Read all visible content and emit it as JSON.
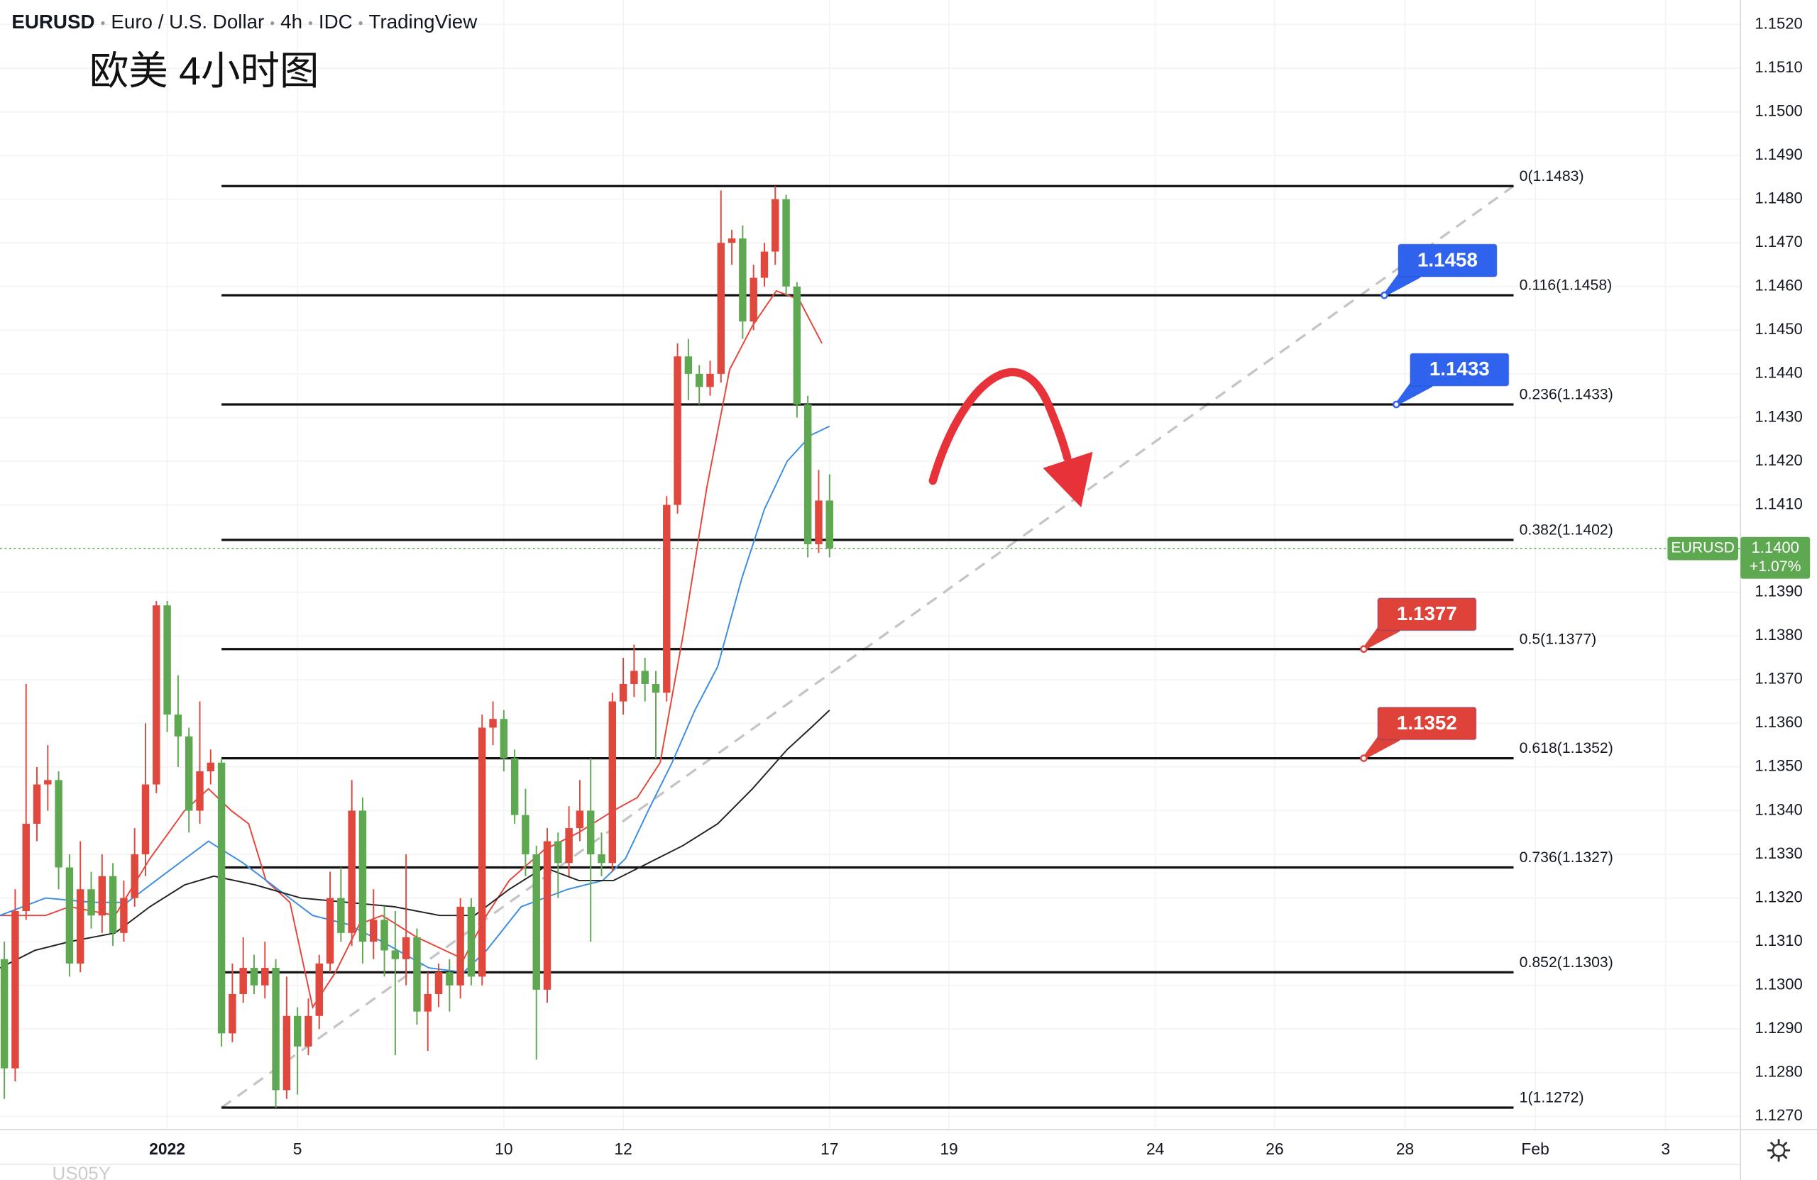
{
  "chart_data": {
    "type": "candlestick",
    "header": [
      "EURUSD",
      "Euro / U.S. Dollar",
      "4h",
      "IDC",
      "TradingView"
    ],
    "title": "欧美 4小时图",
    "footer_symbol": "US05Y",
    "up_color": "#e0473d",
    "down_color": "#5da850",
    "open": [
      1.1306,
      1.1281,
      1.1317,
      1.1337,
      1.1346,
      1.1347,
      1.1327,
      1.1305,
      1.1322,
      1.1316,
      1.1325,
      1.1312,
      1.132,
      1.133,
      1.1346,
      1.1387,
      1.1362,
      1.1357,
      1.134,
      1.1349,
      1.1351,
      1.1289,
      1.1298,
      1.1304,
      1.13,
      1.1304,
      1.1276,
      1.1293,
      1.1286,
      1.1293,
      1.1305,
      1.132,
      1.1312,
      1.134,
      1.131,
      1.1315,
      1.1308,
      1.1306,
      1.1311,
      1.1294,
      1.1298,
      1.1303,
      1.13,
      1.1318,
      1.1302,
      1.1359,
      1.1361,
      1.1352,
      1.1339,
      1.133,
      1.1299,
      1.1333,
      1.1328,
      1.1336,
      1.134,
      1.133,
      1.1328,
      1.1365,
      1.1369,
      1.1372,
      1.1369,
      1.1367,
      1.141,
      1.1444,
      1.144,
      1.1437,
      1.144,
      1.147,
      1.1471,
      1.1452,
      1.1462,
      1.1468,
      1.148,
      1.146,
      1.1433,
      1.1401,
      1.1411
    ],
    "high": [
      1.131,
      1.1322,
      1.1369,
      1.135,
      1.1355,
      1.1349,
      1.133,
      1.1333,
      1.1326,
      1.133,
      1.1328,
      1.1324,
      1.1336,
      1.136,
      1.1388,
      1.1388,
      1.1371,
      1.1359,
      1.1365,
      1.1354,
      1.1352,
      1.1305,
      1.1311,
      1.1307,
      1.131,
      1.1306,
      1.1302,
      1.1295,
      1.1297,
      1.1307,
      1.1326,
      1.1327,
      1.1347,
      1.1343,
      1.1322,
      1.1318,
      1.1317,
      1.133,
      1.1313,
      1.1303,
      1.1305,
      1.1306,
      1.132,
      1.132,
      1.1362,
      1.1365,
      1.1363,
      1.1354,
      1.1345,
      1.1332,
      1.1336,
      1.1335,
      1.1341,
      1.1347,
      1.1352,
      1.1335,
      1.1367,
      1.1375,
      1.1378,
      1.1375,
      1.1372,
      1.1412,
      1.1447,
      1.1448,
      1.1442,
      1.1443,
      1.1482,
      1.1473,
      1.1474,
      1.1465,
      1.147,
      1.1483,
      1.1481,
      1.1461,
      1.1435,
      1.1418,
      1.1417
    ],
    "low": [
      1.1274,
      1.1278,
      1.1315,
      1.1333,
      1.134,
      1.1322,
      1.1302,
      1.1303,
      1.1313,
      1.1312,
      1.1309,
      1.131,
      1.1318,
      1.1325,
      1.1344,
      1.1358,
      1.135,
      1.1335,
      1.1337,
      1.1346,
      1.1286,
      1.1287,
      1.1296,
      1.1298,
      1.1297,
      1.1272,
      1.1274,
      1.1275,
      1.1284,
      1.129,
      1.1303,
      1.131,
      1.1309,
      1.1305,
      1.1306,
      1.1302,
      1.1284,
      1.13,
      1.1291,
      1.1285,
      1.1295,
      1.1294,
      1.1297,
      1.13,
      1.13,
      1.1355,
      1.1349,
      1.1337,
      1.1325,
      1.1283,
      1.1296,
      1.132,
      1.1325,
      1.1333,
      1.131,
      1.1325,
      1.1326,
      1.1362,
      1.1366,
      1.1365,
      1.1352,
      1.1365,
      1.1408,
      1.1434,
      1.1433,
      1.1435,
      1.1438,
      1.1465,
      1.1448,
      1.145,
      1.146,
      1.1465,
      1.1458,
      1.143,
      1.1398,
      1.1399,
      1.1398
    ],
    "close": [
      1.1281,
      1.1317,
      1.1337,
      1.1346,
      1.1347,
      1.1327,
      1.1305,
      1.1322,
      1.1316,
      1.1325,
      1.1312,
      1.132,
      1.133,
      1.1346,
      1.1387,
      1.1362,
      1.1357,
      1.134,
      1.1349,
      1.1351,
      1.1289,
      1.1298,
      1.1304,
      1.13,
      1.1304,
      1.1276,
      1.1293,
      1.1286,
      1.1293,
      1.1305,
      1.132,
      1.1312,
      1.134,
      1.131,
      1.1315,
      1.1308,
      1.1306,
      1.1311,
      1.1294,
      1.1298,
      1.1303,
      1.13,
      1.1318,
      1.1302,
      1.1359,
      1.1361,
      1.1352,
      1.1339,
      1.133,
      1.1299,
      1.1333,
      1.1328,
      1.1336,
      1.134,
      1.133,
      1.1328,
      1.1365,
      1.1369,
      1.1372,
      1.1369,
      1.1367,
      1.141,
      1.1444,
      1.144,
      1.1437,
      1.144,
      1.147,
      1.1471,
      1.1452,
      1.1462,
      1.1468,
      1.148,
      1.146,
      1.1433,
      1.1401,
      1.1411,
      1.14
    ],
    "lines": [
      {
        "color": "#e5453b",
        "x": [
          -0.4,
          3.8,
          6.0,
          10.2,
          13.4,
          16.6,
          18.8,
          20.9,
          22.5,
          24.1,
          26.3,
          28.4,
          30.5,
          32.7,
          34.8,
          38.0,
          42.3,
          44.4,
          46.5,
          49.7,
          52.9,
          56.1,
          58.3,
          60.4,
          62.5,
          64.7,
          66.8,
          68.9,
          71.1,
          73.2,
          75.3
        ],
        "values": [
          1.1316,
          1.1316,
          1.1318,
          1.1316,
          1.1329,
          1.134,
          1.1345,
          1.134,
          1.1337,
          1.1324,
          1.1319,
          1.1295,
          1.1303,
          1.1314,
          1.1316,
          1.1311,
          1.1306,
          1.1316,
          1.1324,
          1.1331,
          1.1335,
          1.134,
          1.1343,
          1.1351,
          1.138,
          1.1414,
          1.1441,
          1.1451,
          1.1459,
          1.1457,
          1.1447
        ]
      },
      {
        "color": "#3b8de0",
        "x": [
          -0.4,
          3.8,
          8.1,
          11.3,
          14.5,
          18.8,
          22.0,
          25.2,
          28.4,
          31.6,
          34.8,
          39.1,
          42.3,
          44.4,
          47.6,
          51.9,
          55.1,
          57.2,
          59.3,
          61.5,
          63.6,
          65.7,
          67.9,
          70.0,
          72.1,
          74.3,
          76.0
        ],
        "values": [
          1.1316,
          1.132,
          1.1319,
          1.1319,
          1.1325,
          1.1333,
          1.1328,
          1.1322,
          1.1316,
          1.1314,
          1.131,
          1.1304,
          1.1303,
          1.1308,
          1.1318,
          1.1322,
          1.1324,
          1.1329,
          1.134,
          1.1351,
          1.1363,
          1.1373,
          1.1393,
          1.1409,
          1.142,
          1.1426,
          1.1428
        ]
      },
      {
        "color": "#222222",
        "x": [
          -0.4,
          2.8,
          6.0,
          10.2,
          13.4,
          16.6,
          19.3,
          23.1,
          27.3,
          31.6,
          35.9,
          40.1,
          43.3,
          46.5,
          49.7,
          52.9,
          56.1,
          59.3,
          62.5,
          65.7,
          68.9,
          72.1,
          74.3,
          76.0
        ],
        "values": [
          1.1304,
          1.1308,
          1.131,
          1.1312,
          1.1318,
          1.1323,
          1.1325,
          1.1323,
          1.132,
          1.1319,
          1.1318,
          1.1316,
          1.1316,
          1.1322,
          1.1327,
          1.1324,
          1.1324,
          1.1328,
          1.1332,
          1.1337,
          1.1345,
          1.1354,
          1.1359,
          1.1363
        ]
      }
    ],
    "xlim": [
      -0.4,
      159.9
    ],
    "xticks": [
      {
        "value": 15,
        "label": "2022"
      },
      {
        "value": 27,
        "label": "5"
      },
      {
        "value": 46,
        "label": "10"
      },
      {
        "value": 57,
        "label": "12"
      },
      {
        "value": 76,
        "label": "17"
      },
      {
        "value": 87,
        "label": "19"
      },
      {
        "value": 106,
        "label": "24"
      },
      {
        "value": 117,
        "label": "26"
      },
      {
        "value": 129,
        "label": "28"
      },
      {
        "value": 141,
        "label": "Feb"
      },
      {
        "value": 153,
        "label": "3"
      }
    ],
    "ylim": [
      1.1267,
      1.15256
    ],
    "yticks": [
      {
        "value": 1.127,
        "label": "1.1270"
      },
      {
        "value": 1.128,
        "label": "1.1280"
      },
      {
        "value": 1.129,
        "label": "1.1290"
      },
      {
        "value": 1.13,
        "label": "1.1300"
      },
      {
        "value": 1.131,
        "label": "1.1310"
      },
      {
        "value": 1.132,
        "label": "1.1320"
      },
      {
        "value": 1.133,
        "label": "1.1330"
      },
      {
        "value": 1.134,
        "label": "1.1340"
      },
      {
        "value": 1.135,
        "label": "1.1350"
      },
      {
        "value": 1.136,
        "label": "1.1360"
      },
      {
        "value": 1.137,
        "label": "1.1370"
      },
      {
        "value": 1.138,
        "label": "1.1380"
      },
      {
        "value": 1.139,
        "label": "1.1390"
      },
      {
        "value": 1.14,
        "label": "1.1400"
      },
      {
        "value": 1.141,
        "label": "1.1410"
      },
      {
        "value": 1.142,
        "label": "1.1420"
      },
      {
        "value": 1.143,
        "label": "1.1430"
      },
      {
        "value": 1.144,
        "label": "1.1440"
      },
      {
        "value": 1.145,
        "label": "1.1450"
      },
      {
        "value": 1.146,
        "label": "1.1460"
      },
      {
        "value": 1.147,
        "label": "1.1470"
      },
      {
        "value": 1.148,
        "label": "1.1480"
      },
      {
        "value": 1.149,
        "label": "1.1490"
      },
      {
        "value": 1.15,
        "label": "1.1500"
      },
      {
        "value": 1.151,
        "label": "1.1510"
      },
      {
        "value": 1.152,
        "label": "1.1520"
      }
    ],
    "grid": true,
    "fib": {
      "x": [
        20,
        139
      ],
      "levels": [
        {
          "value": 1.1483,
          "label": "0(1.1483)"
        },
        {
          "value": 1.1458,
          "label": "0.116(1.1458)"
        },
        {
          "value": 1.1433,
          "label": "0.236(1.1433)"
        },
        {
          "value": 1.1402,
          "label": "0.382(1.1402)"
        },
        {
          "value": 1.1377,
          "label": "0.5(1.1377)"
        },
        {
          "value": 1.1352,
          "label": "0.618(1.1352)"
        },
        {
          "value": 1.1327,
          "label": "0.736(1.1327)"
        },
        {
          "value": 1.1303,
          "label": "0.852(1.1303)"
        },
        {
          "value": 1.1272,
          "label": "1(1.1272)"
        }
      ]
    },
    "badges": [
      {
        "value": 1.1458,
        "x": 127.1,
        "color": "#2f63ee"
      },
      {
        "value": 1.1433,
        "x": 128.2,
        "color": "#2f63ee"
      },
      {
        "value": 1.1377,
        "x": 125.2,
        "color": "#df4238"
      },
      {
        "value": 1.1352,
        "x": 125.2,
        "color": "#df4238"
      }
    ],
    "last": {
      "symbol": "EURUSD",
      "price": {
        "value": 1.14,
        "label": "1.1400"
      },
      "change": {
        "value": 1.07,
        "label": "+1.07%"
      },
      "color": "#5da850"
    }
  }
}
